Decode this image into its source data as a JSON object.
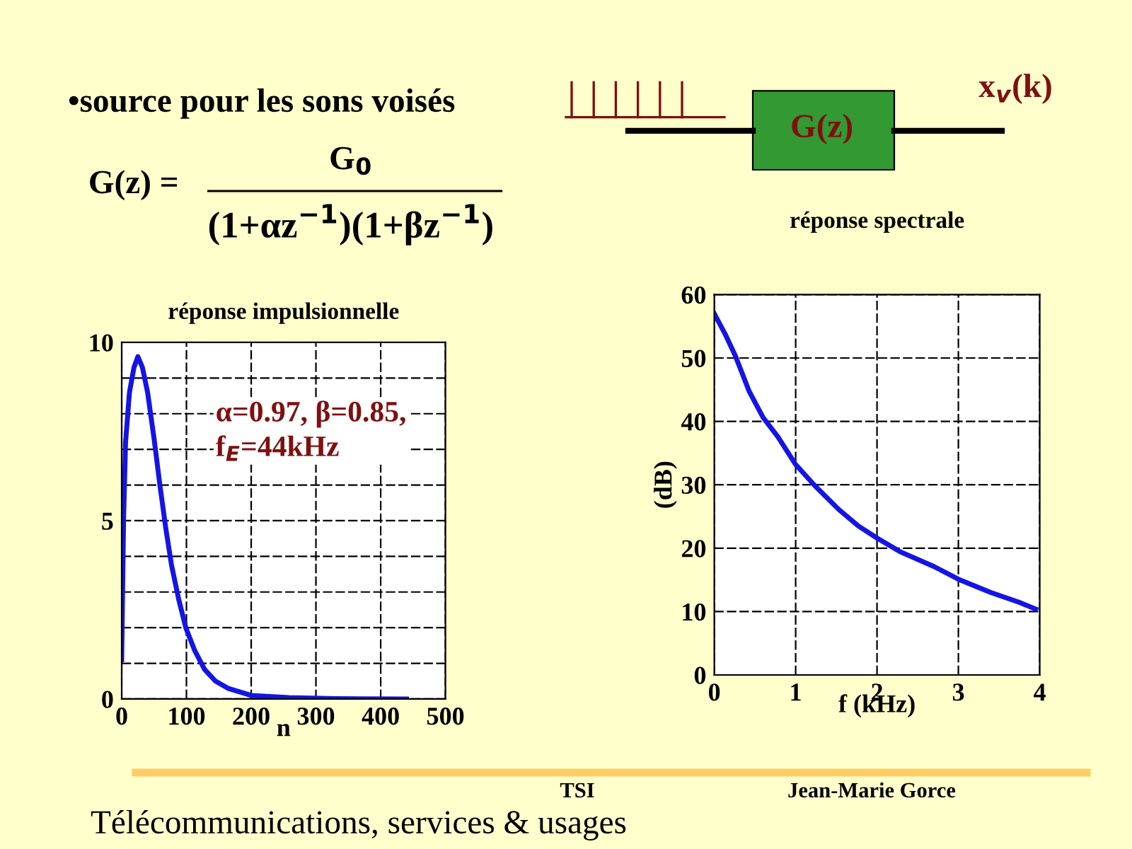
{
  "chart_data": [
    {
      "type": "line",
      "title": "réponse impulsionnelle",
      "xlabel": "n",
      "x": [
        0,
        1,
        3,
        6,
        12,
        19,
        25,
        32,
        40,
        50,
        59,
        68,
        77,
        88,
        99,
        113,
        128,
        145,
        164,
        200,
        258,
        330,
        440
      ],
      "series": [
        {
          "color": "#1414e6",
          "values": [
            1.1,
            2.5,
            5.1,
            7.2,
            8.6,
            9.3,
            9.6,
            9.3,
            8.6,
            7.3,
            6.0,
            4.8,
            3.75,
            2.8,
            2.0,
            1.35,
            0.83,
            0.5,
            0.3,
            0.1,
            0.04,
            0.01,
            0
          ]
        }
      ],
      "xlim": [
        0,
        500
      ],
      "ylim": [
        0,
        10
      ],
      "xticks": [
        0,
        100,
        200,
        300,
        400,
        500
      ],
      "yticks": [
        0,
        {
          "value": 1,
          "label": null
        },
        {
          "value": 2,
          "label": null
        },
        {
          "value": 3,
          "label": null
        },
        {
          "value": 4,
          "label": null
        },
        5,
        {
          "value": 6,
          "label": null
        },
        {
          "value": 7,
          "label": null
        },
        {
          "value": 8,
          "label": null
        },
        {
          "value": 9,
          "label": null
        },
        10
      ],
      "grid": true,
      "line_style": "solid",
      "marker": "none",
      "annotations": [
        "α=0.97, β=0.85,\nf$_{E}$=44kHz",
        "•source pour les sons voisés",
        "G(z) =",
        "G$_{0}$",
        "(1+αz$^{−1}$)(1+βz$^{−1}$)",
        "G(z)",
        "x$_{v}$(k)",
        "TSI",
        "Jean-Marie Gorce",
        "Télécommunications, services & usages"
      ]
    },
    {
      "type": "line",
      "title": "réponse spectrale",
      "xlabel": "f (kHz)",
      "ylabel": "(dB)",
      "x": [
        0,
        0.14,
        0.26,
        0.43,
        0.6,
        0.78,
        1,
        1.24,
        1.53,
        1.77,
        2,
        2.29,
        2.7,
        3,
        3.4,
        3.74,
        3.95
      ],
      "series": [
        {
          "color": "#1414e6",
          "values": [
            57.0,
            53.6,
            50.3,
            44.7,
            40.6,
            37.6,
            33.2,
            29.8,
            26.1,
            23.5,
            21.6,
            19.4,
            17.1,
            15.1,
            13.0,
            11.5,
            10.4
          ]
        }
      ],
      "xlim": [
        0,
        4
      ],
      "ylim": [
        0,
        60
      ],
      "xticks": [
        0,
        1,
        2,
        3,
        4
      ],
      "yticks": [
        0,
        10,
        20,
        30,
        40,
        50,
        60
      ],
      "grid": true,
      "line_style": "solid",
      "marker": "none"
    }
  ]
}
